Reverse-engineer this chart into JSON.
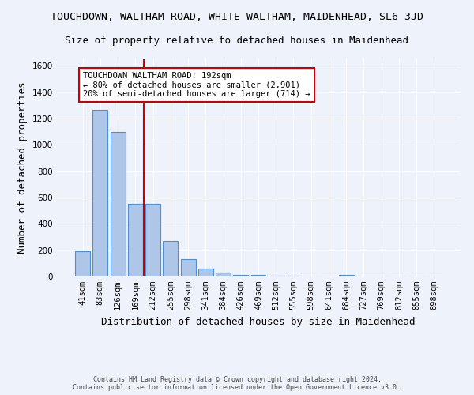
{
  "title": "TOUCHDOWN, WALTHAM ROAD, WHITE WALTHAM, MAIDENHEAD, SL6 3JD",
  "subtitle": "Size of property relative to detached houses in Maidenhead",
  "xlabel": "Distribution of detached houses by size in Maidenhead",
  "ylabel": "Number of detached properties",
  "footer_line1": "Contains HM Land Registry data © Crown copyright and database right 2024.",
  "footer_line2": "Contains public sector information licensed under the Open Government Licence v3.0.",
  "bar_labels": [
    "41sqm",
    "83sqm",
    "126sqm",
    "169sqm",
    "212sqm",
    "255sqm",
    "298sqm",
    "341sqm",
    "384sqm",
    "426sqm",
    "469sqm",
    "512sqm",
    "555sqm",
    "598sqm",
    "641sqm",
    "684sqm",
    "727sqm",
    "769sqm",
    "812sqm",
    "855sqm",
    "898sqm"
  ],
  "bar_values": [
    195,
    1265,
    1100,
    555,
    555,
    270,
    130,
    60,
    30,
    15,
    10,
    7,
    5,
    3,
    0,
    15,
    0,
    0,
    0,
    0,
    0
  ],
  "bar_color": "#aec6e8",
  "bar_edge_color": "#4a90d9",
  "vline_x": 3.5,
  "vline_color": "#cc0000",
  "annotation_text": "TOUCHDOWN WALTHAM ROAD: 192sqm\n← 80% of detached houses are smaller (2,901)\n20% of semi-detached houses are larger (714) →",
  "annotation_box_color": "#ffffff",
  "annotation_box_edge": "#cc0000",
  "ylim": [
    0,
    1650
  ],
  "yticks": [
    0,
    200,
    400,
    600,
    800,
    1000,
    1200,
    1400,
    1600
  ],
  "background_color": "#eef2fb",
  "grid_color": "#ffffff",
  "title_fontsize": 9.5,
  "subtitle_fontsize": 9,
  "axis_label_fontsize": 9,
  "tick_fontsize": 7.5,
  "footer_fontsize": 6,
  "annotation_fontsize": 7.5
}
